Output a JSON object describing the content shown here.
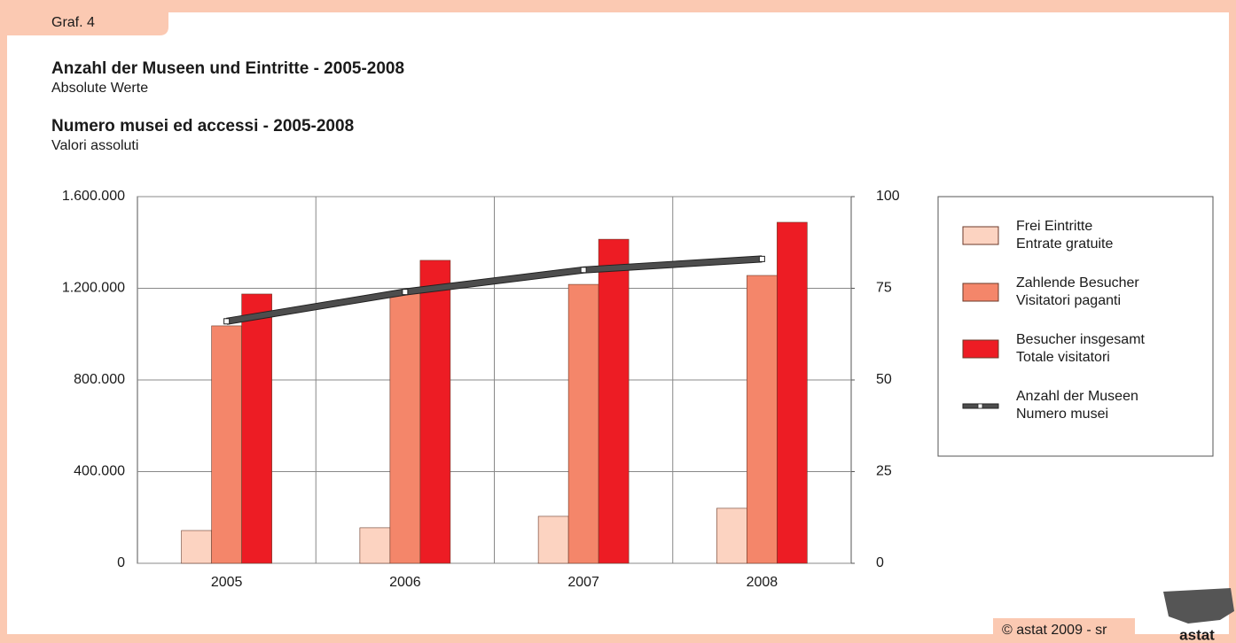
{
  "label": "Graf. 4",
  "footer": "© astat 2009 - sr",
  "logo": "astat",
  "chart_data": {
    "type": "bar",
    "title": "Anzahl der Museen und Eintritte - 2005-2008",
    "subtitle": "Absolute Werte",
    "title_it": "Numero musei ed accessi - 2005-2008",
    "subtitle_it": "Valori assoluti",
    "categories": [
      "2005",
      "2006",
      "2007",
      "2008"
    ],
    "series": [
      {
        "name": "Frei Eintritte",
        "name_it": "Entrate gratuite",
        "color": "#fcd3c1",
        "type": "bar",
        "values": [
          143000,
          155000,
          205000,
          240000
        ]
      },
      {
        "name": "Zahlende Besucher",
        "name_it": "Visitatori paganti",
        "color": "#f4866a",
        "type": "bar",
        "values": [
          1036000,
          1183000,
          1217000,
          1256000
        ]
      },
      {
        "name": "Besucher insgesamt",
        "name_it": "Totale visitatori",
        "color": "#ed1c24",
        "type": "bar",
        "values": [
          1175000,
          1322000,
          1414000,
          1488000
        ]
      },
      {
        "name": "Anzahl der Museen",
        "name_it": "Numero musei",
        "color": "#4d4d4d",
        "type": "line",
        "axis": "y2",
        "values": [
          66,
          74,
          80,
          83
        ]
      }
    ],
    "ylim": [
      0,
      1600000
    ],
    "yticks": [
      0,
      {
        "value": 400000,
        "label": "400.000"
      },
      {
        "value": 800000,
        "label": "800.000"
      },
      {
        "value": 1200000,
        "label": "1.200.000"
      },
      {
        "value": 1600000,
        "label": "1.600.000"
      }
    ],
    "y2lim": [
      0,
      100
    ],
    "y2ticks": [
      0,
      25,
      50,
      75,
      100
    ],
    "grid": true,
    "legend": "right"
  }
}
